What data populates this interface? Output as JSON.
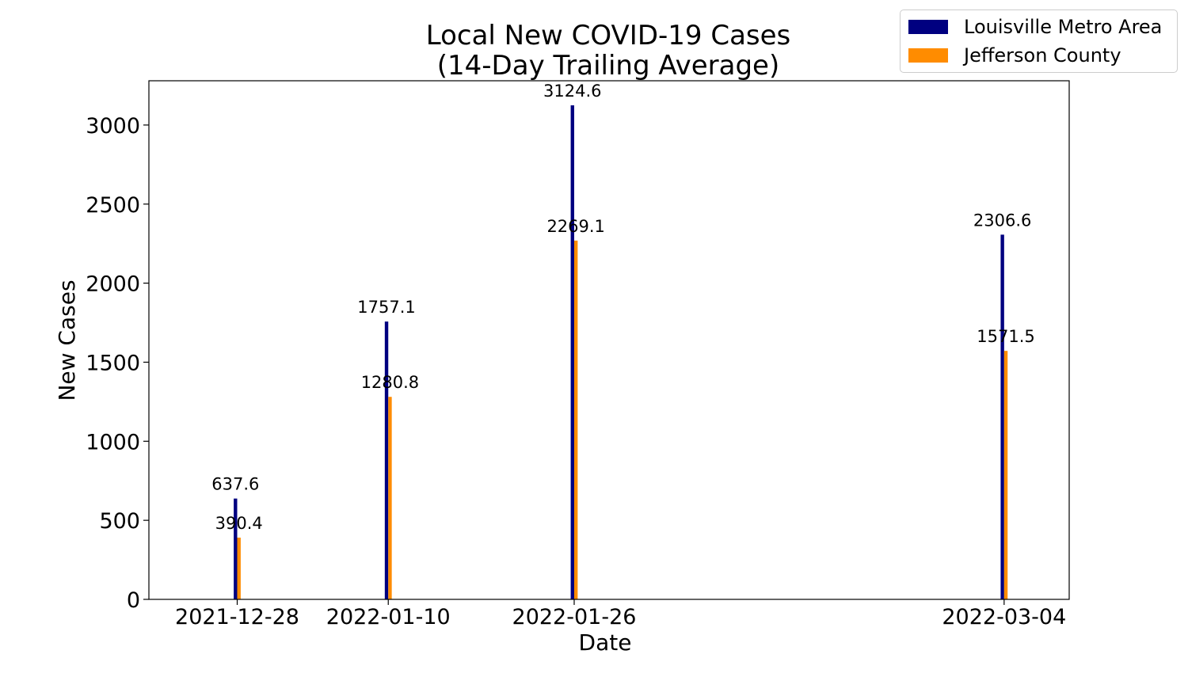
{
  "chart_data": {
    "type": "bar",
    "title": [
      "Local New COVID-19 Cases",
      "(14-Day Trailing Average)"
    ],
    "xlabel": "Date",
    "ylabel": "New Cases",
    "ylim": [
      0,
      3280
    ],
    "yticks": [
      0,
      500,
      1000,
      1500,
      2000,
      2500,
      3000
    ],
    "x_dates": [
      "2021-12-28",
      "2022-01-10",
      "2022-01-26",
      "2022-03-04"
    ],
    "x_range_days": [
      -7.6,
      71.6
    ],
    "categories": [
      "2021-12-28",
      "2022-01-10",
      "2022-01-26",
      "2022-03-04"
    ],
    "series": [
      {
        "name": "Louisville Metro Area",
        "color": "#000080",
        "values": [
          637.6,
          1757.1,
          3124.6,
          2306.6
        ],
        "labels": [
          "637.6",
          "1757.1",
          "3124.6",
          "2306.6"
        ]
      },
      {
        "name": "Jefferson County",
        "color": "#ff8c00",
        "values": [
          390.4,
          1280.8,
          2269.1,
          1571.5
        ],
        "labels": [
          "390.4",
          "1280.8",
          "2269.1",
          "1571.5"
        ]
      }
    ],
    "legend_position": "top-right",
    "grid": false
  }
}
